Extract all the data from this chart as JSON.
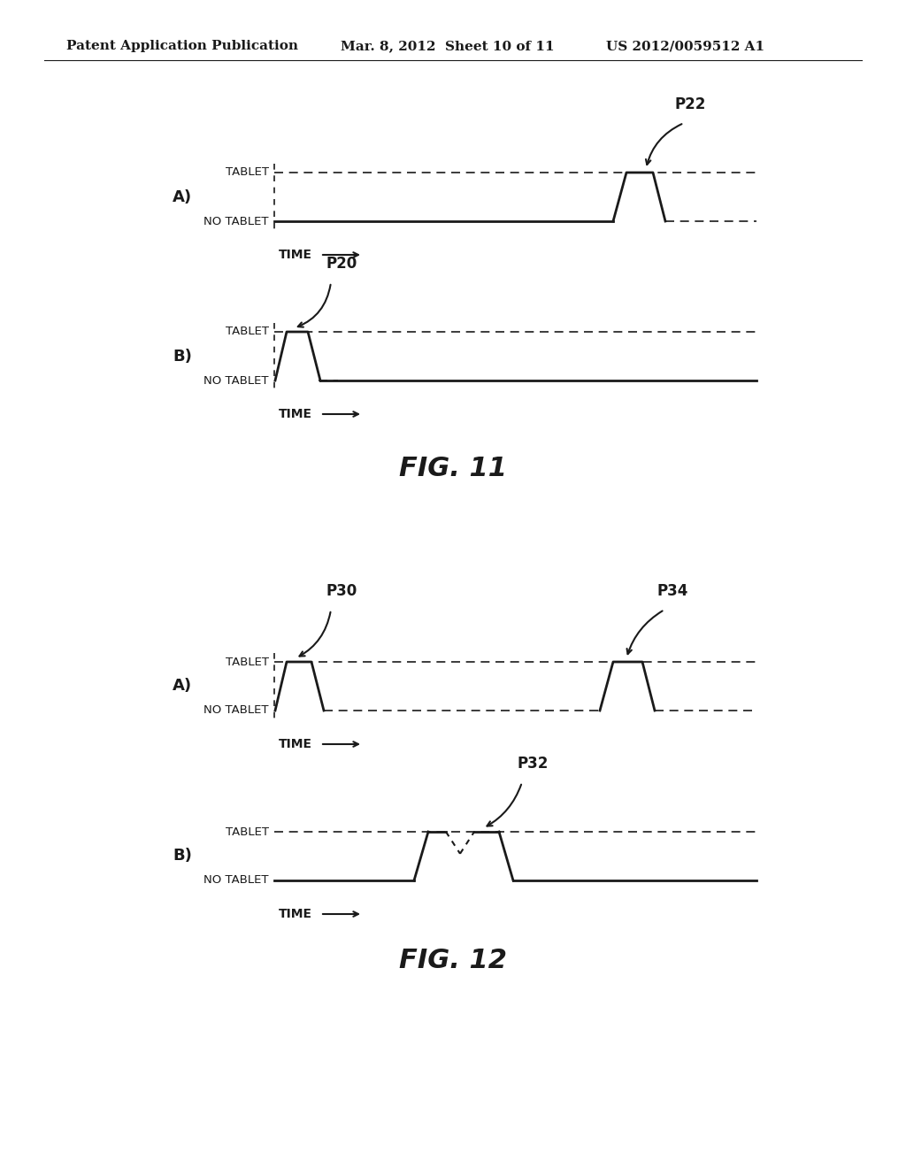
{
  "header_left": "Patent Application Publication",
  "header_mid": "Mar. 8, 2012  Sheet 10 of 11",
  "header_right": "US 2012/0059512 A1",
  "background_color": "#ffffff",
  "text_color": "#1a1a1a",
  "line_color": "#1a1a1a",
  "fig11_title": "FIG. 11",
  "fig12_title": "FIG. 12",
  "fig11_A_label": "A)",
  "fig11_B_label": "B)",
  "fig12_A_label": "A)",
  "fig12_B_label": "B)",
  "tablet_label": "TABLET",
  "no_tablet_label": "NO TABLET",
  "time_label": "TIME",
  "p22_label": "P22",
  "p20_label": "P20",
  "p30_label": "P30",
  "p32_label": "P32",
  "p34_label": "P34"
}
